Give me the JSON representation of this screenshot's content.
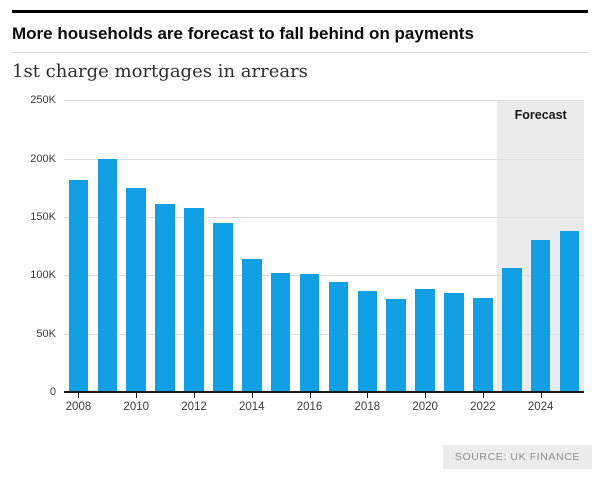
{
  "header": {
    "title": "More households are forecast to fall behind on payments",
    "subtitle": "1st charge mortgages in arrears"
  },
  "chart_data": {
    "type": "bar",
    "title": "1st charge mortgages in arrears",
    "categories": [
      "2008",
      "2009",
      "2010",
      "2011",
      "2012",
      "2013",
      "2014",
      "2015",
      "2016",
      "2017",
      "2018",
      "2019",
      "2020",
      "2021",
      "2022",
      "2023",
      "2024",
      "2025"
    ],
    "values": [
      182,
      200,
      175,
      161,
      158,
      145,
      114,
      102,
      101,
      94,
      87,
      80,
      88,
      85,
      81,
      106,
      130,
      138
    ],
    "unit": "thousands",
    "ylim": [
      0,
      250
    ],
    "ytick_values": [
      0,
      50,
      100,
      150,
      200,
      250
    ],
    "ytick_labels": [
      "0",
      "50K",
      "100K",
      "150K",
      "200K",
      "250K"
    ],
    "xtick_labels": [
      "2008",
      "2010",
      "2012",
      "2014",
      "2016",
      "2018",
      "2020",
      "2022",
      "2024"
    ],
    "forecast": {
      "label": "Forecast",
      "start_category": "2023"
    },
    "grid": true,
    "legend": "none",
    "colors": {
      "bar": "#129fe3",
      "forecast_band": "#ebebeb",
      "grid": "#dcdcdc",
      "axis": "#1a1a1a"
    }
  },
  "footer": {
    "source": "SOURCE: UK FINANCE"
  }
}
